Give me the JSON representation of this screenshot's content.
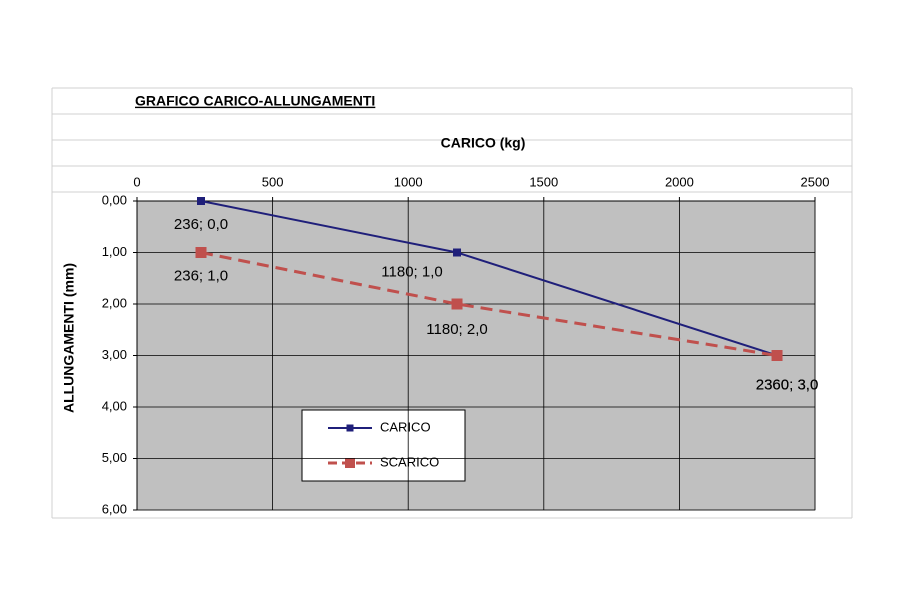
{
  "chart_data": {
    "type": "line",
    "title": "GRAFICO  CARICO-ALLUNGAMENTI",
    "x_label": "CARICO (kg)",
    "y_label": "ALLUNGAMENTI  (mm)",
    "xlim": [
      0,
      2500
    ],
    "xticks": [
      0,
      500,
      1000,
      1500,
      2000,
      2500
    ],
    "ylim": [
      0,
      6
    ],
    "yticks": [
      {
        "value": 0,
        "label": "0,00"
      },
      {
        "value": 1,
        "label": "1,00"
      },
      {
        "value": 2,
        "label": "2,00"
      },
      {
        "value": 3,
        "label": "3,00"
      },
      {
        "value": 4,
        "label": "4,00"
      },
      {
        "value": 5,
        "label": "5,00"
      },
      {
        "value": 6,
        "label": "6,00"
      }
    ],
    "y_reversed": true,
    "x_axis_top": true,
    "grid": true,
    "legend": "lower-left",
    "series": [
      {
        "name": "CARICO",
        "color": "#1f1f7a",
        "dash": false,
        "marker": "square",
        "x": [
          236,
          1180,
          2360
        ],
        "values": [
          0,
          1,
          3
        ],
        "value_labels": [
          "236; 0,0",
          "1180; 1,0",
          "2360; 3,0"
        ]
      },
      {
        "name": "SCARICO",
        "color": "#c0504d",
        "dash": true,
        "marker": "square",
        "x": [
          236,
          1180,
          2360
        ],
        "values": [
          1,
          2,
          3
        ],
        "value_labels": [
          "236; 1,0",
          "1180; 2,0",
          "2360; 3,0"
        ]
      }
    ]
  }
}
